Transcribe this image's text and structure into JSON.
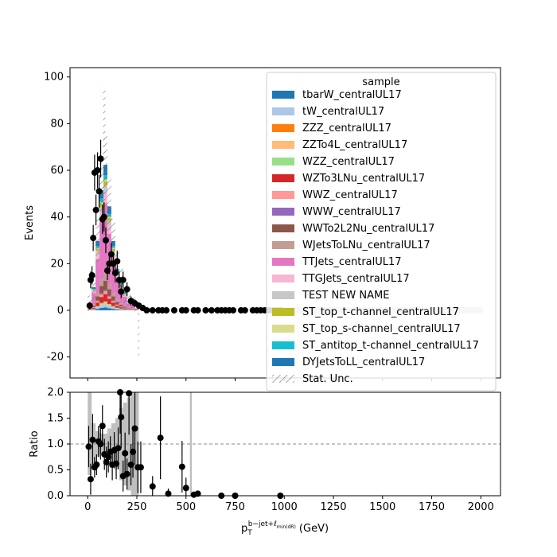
{
  "chart_data": [
    {
      "panel": "main",
      "type": "bar",
      "stacked": true,
      "ylabel": "Events",
      "xlim": [
        -90,
        2100
      ],
      "ylim": [
        -29,
        104
      ],
      "y_ticks": [
        -20,
        0,
        20,
        40,
        60,
        80,
        100
      ],
      "x_ticks": [
        0,
        250,
        500,
        750,
        1000,
        1250,
        1500,
        1750,
        2000
      ],
      "legend": {
        "title": "sample",
        "placement": "top-right",
        "entries": [
          {
            "label": "tbarW_centralUL17",
            "color": "#1f77b4"
          },
          {
            "label": "tW_centralUL17",
            "color": "#aec7e8"
          },
          {
            "label": "ZZZ_centralUL17",
            "color": "#ff7f0e"
          },
          {
            "label": "ZZTo4L_centralUL17",
            "color": "#ffbb78"
          },
          {
            "label": "WZZ_centralUL17",
            "color": "#98df8a"
          },
          {
            "label": "WZTo3LNu_centralUL17",
            "color": "#d62728"
          },
          {
            "label": "WWZ_centralUL17",
            "color": "#ff9896"
          },
          {
            "label": "WWW_centralUL17",
            "color": "#9467bd"
          },
          {
            "label": "WWTo2L2Nu_centralUL17",
            "color": "#8c564b"
          },
          {
            "label": "WJetsToLNu_centralUL17",
            "color": "#c49c94"
          },
          {
            "label": "TTJets_centralUL17",
            "color": "#e377c2"
          },
          {
            "label": "TTGJets_centralUL17",
            "color": "#f7b6d2"
          },
          {
            "label": "TEST NEW NAME",
            "color": "#c7c7c7"
          },
          {
            "label": "ST_top_t-channel_centralUL17",
            "color": "#bcbd22"
          },
          {
            "label": "ST_top_s-channel_centralUL17",
            "color": "#dbdb8d"
          },
          {
            "label": "ST_antitop_t-channel_centralUL17",
            "color": "#17becf"
          },
          {
            "label": "DYJetsToLL_centralUL17",
            "color": "#1f77b4"
          },
          {
            "label": "Stat. Unc.",
            "color": "#777777",
            "hatched": true
          }
        ]
      },
      "mc_total": {
        "bin_edges": [
          0,
          20,
          40,
          60,
          80,
          100,
          120,
          140,
          160,
          180,
          200,
          220,
          240,
          260
        ],
        "values": [
          3,
          10,
          30,
          52,
          63,
          45,
          30,
          18,
          12,
          8,
          4,
          3,
          1
        ]
      },
      "data_points": [
        {
          "x": 10,
          "y": 2,
          "err": 1.5
        },
        {
          "x": 15,
          "y": 13,
          "err": 3.6
        },
        {
          "x": 22,
          "y": 15,
          "err": 3.9
        },
        {
          "x": 28,
          "y": 31,
          "err": 5.6
        },
        {
          "x": 35,
          "y": 59,
          "err": 7.7
        },
        {
          "x": 42,
          "y": 43,
          "err": 6.6
        },
        {
          "x": 50,
          "y": 60,
          "err": 7.7
        },
        {
          "x": 58,
          "y": 51,
          "err": 7.1
        },
        {
          "x": 66,
          "y": 65,
          "err": 8.1
        },
        {
          "x": 75,
          "y": 39,
          "err": 6.2
        },
        {
          "x": 83,
          "y": 40,
          "err": 6.3
        },
        {
          "x": 92,
          "y": 30,
          "err": 5.5
        },
        {
          "x": 100,
          "y": 17,
          "err": 4.1
        },
        {
          "x": 110,
          "y": 20,
          "err": 4.5
        },
        {
          "x": 120,
          "y": 24,
          "err": 4.9
        },
        {
          "x": 130,
          "y": 20,
          "err": 4.5
        },
        {
          "x": 140,
          "y": 16,
          "err": 4.0
        },
        {
          "x": 150,
          "y": 21,
          "err": 4.6
        },
        {
          "x": 160,
          "y": 13,
          "err": 3.6
        },
        {
          "x": 170,
          "y": 8,
          "err": 2.8
        },
        {
          "x": 180,
          "y": 13,
          "err": 3.6
        },
        {
          "x": 200,
          "y": 9,
          "err": 3.0
        },
        {
          "x": 220,
          "y": 4,
          "err": 2.0
        },
        {
          "x": 240,
          "y": 3,
          "err": 1.7
        },
        {
          "x": 260,
          "y": 2,
          "err": 1.4
        },
        {
          "x": 280,
          "y": 1,
          "err": 1.0
        },
        {
          "x": 300,
          "y": 0,
          "err": 1.0
        },
        {
          "x": 330,
          "y": 0,
          "err": 1.0
        },
        {
          "x": 360,
          "y": 0,
          "err": 1.0
        },
        {
          "x": 380,
          "y": 0,
          "err": 1.0
        },
        {
          "x": 400,
          "y": 0,
          "err": 1.0
        },
        {
          "x": 440,
          "y": 0,
          "err": 1.0
        },
        {
          "x": 480,
          "y": 0,
          "err": 1.0
        },
        {
          "x": 500,
          "y": 0,
          "err": 1.0
        },
        {
          "x": 540,
          "y": 0,
          "err": 1.0
        },
        {
          "x": 560,
          "y": 0,
          "err": 1.0
        },
        {
          "x": 600,
          "y": 0,
          "err": 1.0
        },
        {
          "x": 630,
          "y": 0,
          "err": 1.0
        },
        {
          "x": 660,
          "y": 0,
          "err": 1.0
        },
        {
          "x": 680,
          "y": 0,
          "err": 1.0
        },
        {
          "x": 700,
          "y": 0,
          "err": 1.0
        },
        {
          "x": 720,
          "y": 0,
          "err": 1.0
        },
        {
          "x": 740,
          "y": 0,
          "err": 1.0
        },
        {
          "x": 780,
          "y": 0,
          "err": 1.0
        },
        {
          "x": 800,
          "y": 0,
          "err": 1.0
        },
        {
          "x": 840,
          "y": 0,
          "err": 1.0
        },
        {
          "x": 860,
          "y": 0,
          "err": 1.0
        },
        {
          "x": 880,
          "y": 0,
          "err": 1.0
        },
        {
          "x": 900,
          "y": 0,
          "err": 1.0
        },
        {
          "x": 920,
          "y": 0,
          "err": 1.0
        },
        {
          "x": 940,
          "y": 0,
          "err": 1.0
        },
        {
          "x": 960,
          "y": 0,
          "err": 1.0
        },
        {
          "x": 980,
          "y": 0,
          "err": 1.0
        },
        {
          "x": 1000,
          "y": 0,
          "err": 1.0
        }
      ]
    },
    {
      "panel": "ratio",
      "type": "scatter",
      "xlabel": "p_T^{b-jet+ℓ_min(dR)} (GeV)",
      "ylabel": "Ratio",
      "xlim": [
        -90,
        2100
      ],
      "ylim": [
        0,
        2.0
      ],
      "y_ticks": [
        0.0,
        0.5,
        1.0,
        1.5,
        2.0
      ],
      "x_ticks": [
        0,
        250,
        500,
        750,
        1000,
        1250,
        1500,
        1750,
        2000
      ],
      "reference_line": 1.0,
      "points": [
        {
          "x": 5,
          "y": 0.95,
          "err": 0.4
        },
        {
          "x": 15,
          "y": 0.32,
          "err": 0.3
        },
        {
          "x": 25,
          "y": 1.08,
          "err": 0.5
        },
        {
          "x": 35,
          "y": 0.55,
          "err": 0.2
        },
        {
          "x": 45,
          "y": 0.6,
          "err": 0.2
        },
        {
          "x": 55,
          "y": 1.05,
          "err": 0.3
        },
        {
          "x": 65,
          "y": 1.0,
          "err": 0.3
        },
        {
          "x": 75,
          "y": 1.35,
          "err": 0.4
        },
        {
          "x": 85,
          "y": 0.8,
          "err": 0.3
        },
        {
          "x": 95,
          "y": 0.65,
          "err": 0.3
        },
        {
          "x": 105,
          "y": 0.75,
          "err": 0.3
        },
        {
          "x": 115,
          "y": 0.85,
          "err": 0.3
        },
        {
          "x": 125,
          "y": 0.6,
          "err": 0.3
        },
        {
          "x": 135,
          "y": 0.88,
          "err": 0.35
        },
        {
          "x": 145,
          "y": 0.62,
          "err": 0.3
        },
        {
          "x": 155,
          "y": 0.92,
          "err": 0.4
        },
        {
          "x": 165,
          "y": 2.0,
          "err": 0.8
        },
        {
          "x": 170,
          "y": 1.52,
          "err": 0.6
        },
        {
          "x": 180,
          "y": 0.38,
          "err": 0.3
        },
        {
          "x": 190,
          "y": 0.82,
          "err": 0.4
        },
        {
          "x": 200,
          "y": 0.42,
          "err": 0.3
        },
        {
          "x": 210,
          "y": 1.98,
          "err": 0.8
        },
        {
          "x": 220,
          "y": 0.6,
          "err": 0.4
        },
        {
          "x": 230,
          "y": 0.85,
          "err": 0.5
        },
        {
          "x": 240,
          "y": 1.3,
          "err": 0.7
        },
        {
          "x": 255,
          "y": 0.55,
          "err": 0.5
        },
        {
          "x": 270,
          "y": 0.55,
          "err": 0.5
        },
        {
          "x": 330,
          "y": 0.18,
          "err": 0.2
        },
        {
          "x": 370,
          "y": 1.12,
          "err": 0.8
        },
        {
          "x": 410,
          "y": 0.04,
          "err": 0.1
        },
        {
          "x": 480,
          "y": 0.56,
          "err": 0.5
        },
        {
          "x": 500,
          "y": 0.15,
          "err": 0.2
        },
        {
          "x": 540,
          "y": 0.02,
          "err": 0.05
        },
        {
          "x": 560,
          "y": 0.04,
          "err": 0.05
        },
        {
          "x": 680,
          "y": 0.0,
          "err": 0.02
        },
        {
          "x": 750,
          "y": 0.0,
          "err": 0.02
        },
        {
          "x": 980,
          "y": 0.0,
          "err": 0.02
        }
      ],
      "unc_band": [
        {
          "x0": 0,
          "x1": 20,
          "lo": 0.4,
          "hi": 2.0
        },
        {
          "x0": 20,
          "x1": 40,
          "lo": 0.6,
          "hi": 1.4
        },
        {
          "x0": 40,
          "x1": 60,
          "lo": 0.75,
          "hi": 1.25
        },
        {
          "x0": 60,
          "x1": 80,
          "lo": 0.8,
          "hi": 1.2
        },
        {
          "x0": 80,
          "x1": 100,
          "lo": 0.8,
          "hi": 1.2
        },
        {
          "x0": 100,
          "x1": 120,
          "lo": 0.7,
          "hi": 1.3
        },
        {
          "x0": 120,
          "x1": 140,
          "lo": 0.6,
          "hi": 1.4
        },
        {
          "x0": 140,
          "x1": 160,
          "lo": 0.5,
          "hi": 1.5
        },
        {
          "x0": 160,
          "x1": 180,
          "lo": 0.3,
          "hi": 1.7
        },
        {
          "x0": 180,
          "x1": 200,
          "lo": 0.2,
          "hi": 1.8
        },
        {
          "x0": 200,
          "x1": 220,
          "lo": 0.1,
          "hi": 1.9
        },
        {
          "x0": 220,
          "x1": 260,
          "lo": 0.0,
          "hi": 2.0
        },
        {
          "x0": 520,
          "x1": 530,
          "lo": 0.0,
          "hi": 2.0
        }
      ]
    }
  ]
}
